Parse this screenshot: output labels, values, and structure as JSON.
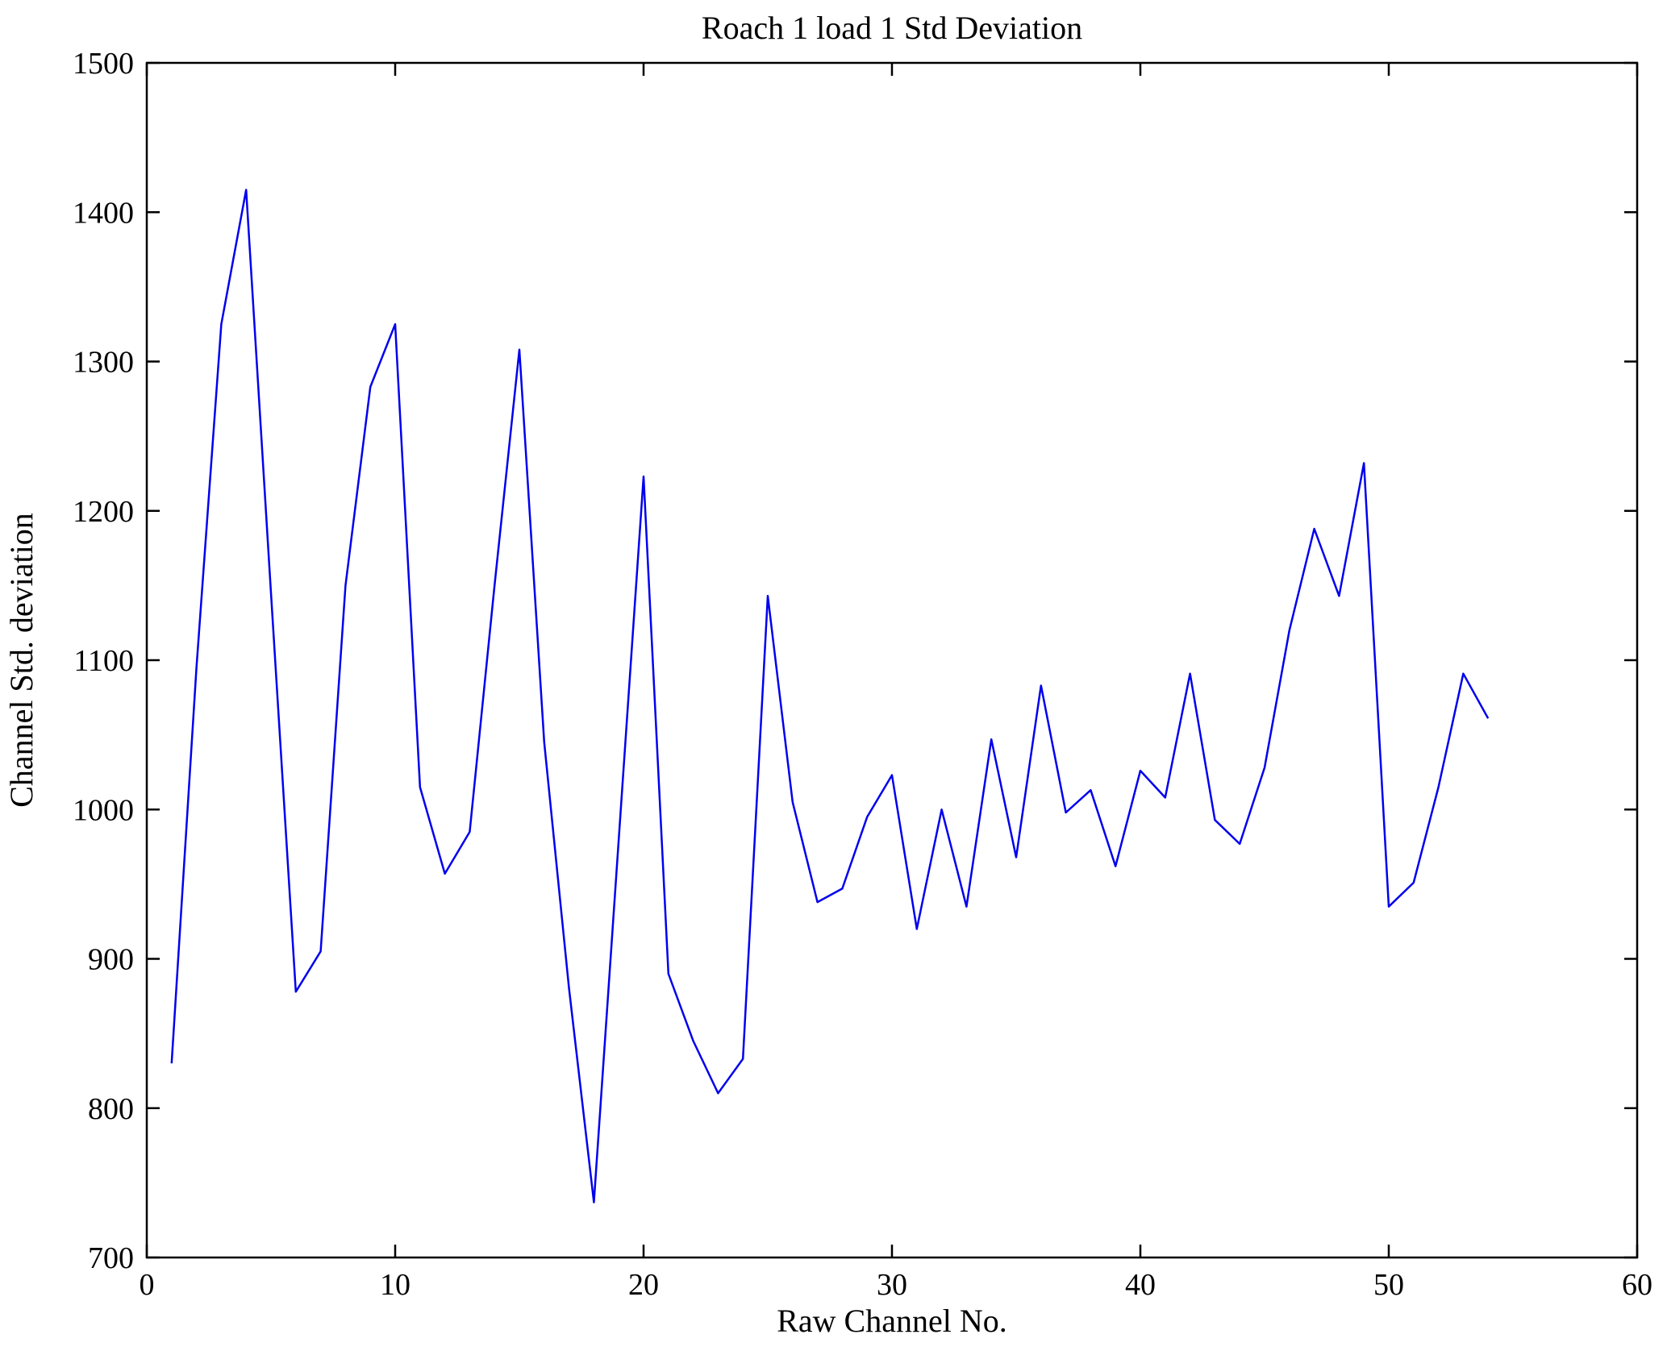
{
  "figure": {
    "title": "Roach 1 load 1 Std Deviation",
    "xlabel": "Raw Channel No.",
    "ylabel": "Channel Std. deviation"
  },
  "chart_data": {
    "type": "line",
    "title": "Roach 1 load 1 Std Deviation",
    "xlabel": "Raw Channel No.",
    "ylabel": "Channel Std. deviation",
    "xlim": [
      0,
      60
    ],
    "ylim": [
      700,
      1500
    ],
    "x_ticks": [
      0,
      10,
      20,
      30,
      40,
      50,
      60
    ],
    "y_ticks": [
      700,
      800,
      900,
      1000,
      1100,
      1200,
      1300,
      1400,
      1500
    ],
    "grid": false,
    "legend_position": "none",
    "line_color": "#0000ee",
    "series": [
      {
        "name": "Channel Std. deviation",
        "x": [
          1,
          2,
          3,
          4,
          5,
          6,
          7,
          8,
          9,
          10,
          11,
          12,
          13,
          14,
          15,
          16,
          17,
          18,
          19,
          20,
          21,
          22,
          23,
          24,
          25,
          26,
          27,
          28,
          29,
          30,
          31,
          32,
          33,
          34,
          35,
          36,
          37,
          38,
          39,
          40,
          41,
          42,
          43,
          44,
          45,
          46,
          47,
          48,
          49,
          50,
          51,
          52,
          53,
          54
        ],
        "y": [
          830,
          1095,
          1325,
          1415,
          1145,
          878,
          905,
          1150,
          1283,
          1325,
          1015,
          957,
          985,
          1150,
          1308,
          1045,
          880,
          737,
          980,
          1223,
          890,
          845,
          810,
          833,
          1143,
          1005,
          938,
          947,
          995,
          1023,
          920,
          1000,
          935,
          1047,
          968,
          1083,
          998,
          1013,
          962,
          1026,
          1008,
          1091,
          993,
          977,
          1028,
          1120,
          1188,
          1143,
          1232,
          935,
          951,
          1015,
          1091,
          1061
        ]
      }
    ]
  }
}
